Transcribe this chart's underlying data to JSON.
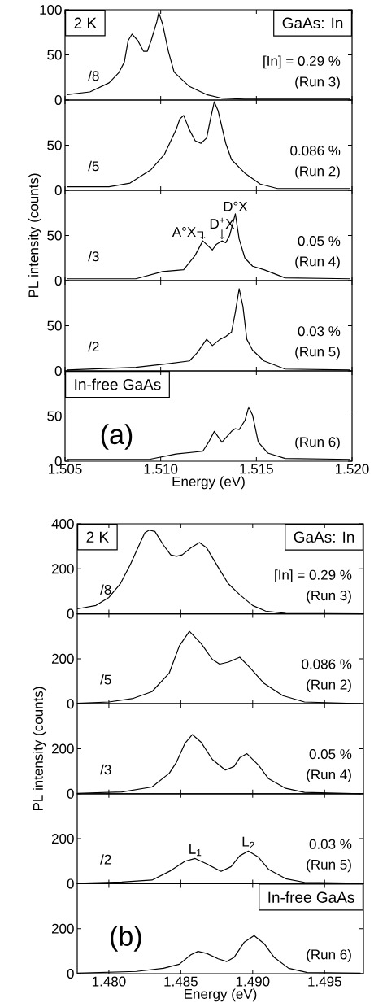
{
  "chart_data": [
    {
      "type": "line",
      "color": "#000000",
      "xlim": [
        1.505,
        1.52
      ],
      "ylim": [
        0,
        100
      ],
      "xticks": [
        1.505,
        1.51,
        1.515,
        1.52
      ],
      "yticks": [
        0,
        50,
        100
      ],
      "tick_labels": "y",
      "x": [
        1.5051,
        1.5063,
        1.5073,
        1.5078,
        1.5081,
        1.5083,
        1.5085,
        1.5088,
        1.5091,
        1.5093,
        1.5095,
        1.5098,
        1.5099,
        1.5101,
        1.5104,
        1.5107,
        1.5115,
        1.5124,
        1.5132,
        1.5144,
        1.5199
      ],
      "values": [
        6,
        9,
        19,
        30,
        42,
        66,
        73,
        66,
        54,
        54,
        66,
        87,
        97,
        84,
        54,
        31,
        15,
        6,
        2,
        1,
        1
      ],
      "annotations": [
        "2 K",
        "GaAs: In",
        "/8",
        "[In] = 0.29 %",
        "(Run 3)"
      ]
    },
    {
      "type": "line",
      "color": "#000000",
      "xlim": [
        1.505,
        1.52
      ],
      "ylim": [
        0,
        100
      ],
      "xticks": [
        1.505,
        1.51,
        1.515,
        1.52
      ],
      "yticks": [
        0,
        50
      ],
      "tick_labels": "y",
      "x": [
        1.5051,
        1.5073,
        1.5084,
        1.5095,
        1.5102,
        1.5108,
        1.511,
        1.5112,
        1.5115,
        1.5118,
        1.5121,
        1.5124,
        1.5126,
        1.5128,
        1.513,
        1.5134,
        1.5137,
        1.5144,
        1.5152,
        1.5161,
        1.5199
      ],
      "values": [
        4,
        4,
        8,
        23,
        40,
        67,
        79,
        83,
        67,
        55,
        52,
        58,
        79,
        98,
        88,
        52,
        34,
        19,
        7,
        2,
        2
      ],
      "annotations": [
        "/5",
        "0.086 %",
        "(Run 2)"
      ]
    },
    {
      "type": "line",
      "color": "#000000",
      "xlim": [
        1.505,
        1.52
      ],
      "ylim": [
        0,
        100
      ],
      "xticks": [
        1.505,
        1.51,
        1.515,
        1.52
      ],
      "yticks": [
        0,
        50
      ],
      "tick_labels": "y",
      "ylabel": "PL intensity (counts)",
      "x": [
        1.5051,
        1.5087,
        1.5101,
        1.5112,
        1.5118,
        1.5122,
        1.5124,
        1.5127,
        1.5129,
        1.5132,
        1.5134,
        1.5136,
        1.5139,
        1.5141,
        1.5144,
        1.5148,
        1.5154,
        1.5165,
        1.5199
      ],
      "values": [
        2,
        2,
        10,
        12,
        28,
        44,
        40,
        34,
        40,
        44,
        42,
        50,
        74,
        46,
        25,
        16,
        12,
        3,
        2
      ],
      "annotations": [
        "/3",
        "0.05 %",
        "(Run 4)",
        {
          "text": "A°X",
          "x": 1.5122,
          "y": 44
        },
        {
          "text": "D$^{+}$X",
          "x": 1.5132,
          "y": 44
        },
        {
          "text": "D°X",
          "x": 1.5139,
          "y": 74
        }
      ]
    },
    {
      "type": "line",
      "color": "#000000",
      "xlim": [
        1.505,
        1.52
      ],
      "ylim": [
        0,
        100
      ],
      "xticks": [
        1.505,
        1.51,
        1.515,
        1.52
      ],
      "yticks": [
        0,
        50
      ],
      "tick_labels": "y",
      "x": [
        1.5051,
        1.5087,
        1.5104,
        1.5115,
        1.5119,
        1.5124,
        1.5127,
        1.5131,
        1.5134,
        1.5137,
        1.5139,
        1.5141,
        1.5143,
        1.5145,
        1.5148,
        1.5154,
        1.5165,
        1.5199
      ],
      "values": [
        1,
        4,
        8,
        11,
        20,
        35,
        28,
        35,
        38,
        43,
        65,
        91,
        71,
        35,
        23,
        11,
        2,
        1
      ],
      "annotations": [
        "/2",
        "0.03 %",
        "(Run 5)"
      ]
    },
    {
      "type": "line",
      "color": "#000000",
      "xlim": [
        1.505,
        1.52
      ],
      "ylim": [
        0,
        100
      ],
      "xticks": [
        {
          "value": 1.505,
          "label": "1.505"
        },
        {
          "value": 1.51,
          "label": "1.510"
        },
        {
          "value": 1.515,
          "label": "1.515"
        },
        {
          "value": 1.52,
          "label": "1.520"
        }
      ],
      "yticks": [
        0,
        50
      ],
      "xlabel": "Energy (eV)",
      "x": [
        1.5051,
        1.5073,
        1.5094,
        1.5108,
        1.5122,
        1.5125,
        1.5128,
        1.5132,
        1.5137,
        1.5139,
        1.5141,
        1.5144,
        1.5146,
        1.5148,
        1.5151,
        1.5156,
        1.5165,
        1.5199
      ],
      "values": [
        2,
        2,
        2,
        8,
        11,
        21,
        33,
        21,
        33,
        36,
        35,
        45,
        60,
        51,
        21,
        9,
        3,
        2
      ],
      "annotations": [
        "In-free GaAs",
        "(a)",
        "(Run 6)"
      ]
    },
    {
      "type": "line",
      "color": "#000000",
      "xlim": [
        1.4778,
        1.4977
      ],
      "ylim": [
        0,
        400
      ],
      "xticks": [
        1.48,
        1.485,
        1.49,
        1.495
      ],
      "yticks": [
        0,
        200,
        400
      ],
      "tick_labels": "y",
      "x": [
        1.4778,
        1.4791,
        1.48,
        1.4808,
        1.4815,
        1.4821,
        1.4825,
        1.4828,
        1.4832,
        1.4838,
        1.4843,
        1.4847,
        1.4851,
        1.4857,
        1.4863,
        1.4868,
        1.4876,
        1.4883,
        1.4891,
        1.49,
        1.4909,
        1.4923,
        1.4977
      ],
      "values": [
        22,
        37,
        73,
        134,
        220,
        305,
        360,
        372,
        366,
        305,
        262,
        256,
        262,
        293,
        317,
        293,
        207,
        134,
        85,
        37,
        12,
        2,
        0
      ],
      "annotations": [
        "2 K",
        "GaAs: In",
        "/8",
        "[In] = 0.29 %",
        "(Run 3)"
      ]
    },
    {
      "type": "line",
      "color": "#000000",
      "xlim": [
        1.4778,
        1.4977
      ],
      "ylim": [
        0,
        400
      ],
      "xticks": [
        1.48,
        1.485,
        1.49,
        1.495
      ],
      "yticks": [
        0,
        200
      ],
      "tick_labels": "y",
      "x": [
        1.4778,
        1.48,
        1.4817,
        1.483,
        1.4842,
        1.4849,
        1.4856,
        1.4864,
        1.4872,
        1.4877,
        1.4883,
        1.4891,
        1.4898,
        1.4908,
        1.4921,
        1.4936,
        1.4975
      ],
      "values": [
        2,
        8,
        24,
        54,
        137,
        257,
        322,
        269,
        197,
        176,
        185,
        207,
        161,
        90,
        36,
        8,
        0
      ],
      "annotations": [
        "/5",
        "0.086 %",
        "(Run 2)"
      ]
    },
    {
      "type": "line",
      "color": "#000000",
      "xlim": [
        1.4778,
        1.4977
      ],
      "ylim": [
        0,
        400
      ],
      "xticks": [
        1.48,
        1.485,
        1.49,
        1.495
      ],
      "yticks": [
        0,
        200
      ],
      "tick_labels": "y",
      "ylabel": "PL intensity (counts)",
      "x": [
        1.4778,
        1.4809,
        1.483,
        1.4842,
        1.4847,
        1.4853,
        1.4858,
        1.4864,
        1.4872,
        1.4881,
        1.4887,
        1.4891,
        1.4896,
        1.4904,
        1.4911,
        1.4923,
        1.4936,
        1.4975
      ],
      "values": [
        2,
        8,
        30,
        91,
        140,
        225,
        263,
        230,
        152,
        105,
        121,
        160,
        178,
        127,
        67,
        24,
        6,
        0
      ],
      "annotations": [
        "/3",
        "0.05 %",
        "(Run 4)"
      ]
    },
    {
      "type": "line",
      "color": "#000000",
      "xlim": [
        1.4778,
        1.4977
      ],
      "ylim": [
        0,
        400
      ],
      "xticks": [
        1.48,
        1.485,
        1.49,
        1.495
      ],
      "yticks": [
        0,
        200
      ],
      "tick_labels": "y",
      "x": [
        1.4778,
        1.4809,
        1.483,
        1.4843,
        1.4853,
        1.486,
        1.4868,
        1.4878,
        1.4885,
        1.4891,
        1.4897,
        1.4904,
        1.4911,
        1.4923,
        1.4936,
        1.4975
      ],
      "values": [
        2,
        7,
        16,
        58,
        100,
        112,
        88,
        55,
        76,
        124,
        145,
        118,
        64,
        22,
        6,
        2
      ],
      "annotations": [
        "/2",
        "0.03 %",
        "(Run 5)",
        {
          "text": "L$_{1}$",
          "x": 1.486,
          "y": 112
        },
        {
          "text": "L$_{2}$",
          "x": 1.4897,
          "y": 145
        }
      ]
    },
    {
      "type": "line",
      "color": "#000000",
      "xlim": [
        1.4778,
        1.4977
      ],
      "ylim": [
        0,
        400
      ],
      "xticks": [
        {
          "value": 1.48,
          "label": "1.480"
        },
        {
          "value": 1.485,
          "label": "1.485"
        },
        {
          "value": 1.49,
          "label": "1.490"
        },
        {
          "value": 1.495,
          "label": "1.495"
        }
      ],
      "yticks": [
        0,
        200
      ],
      "xlabel": "Energy (eV)",
      "x": [
        1.4778,
        1.4819,
        1.4838,
        1.4849,
        1.4857,
        1.4862,
        1.4868,
        1.4876,
        1.4882,
        1.4887,
        1.4894,
        1.4901,
        1.4908,
        1.4915,
        1.4925,
        1.4938,
        1.4975
      ],
      "values": [
        2,
        10,
        24,
        42,
        84,
        99,
        90,
        66,
        54,
        72,
        139,
        169,
        133,
        72,
        24,
        5,
        2
      ],
      "annotations": [
        "In-free GaAs",
        "(b)",
        "(Run 6)"
      ]
    }
  ]
}
